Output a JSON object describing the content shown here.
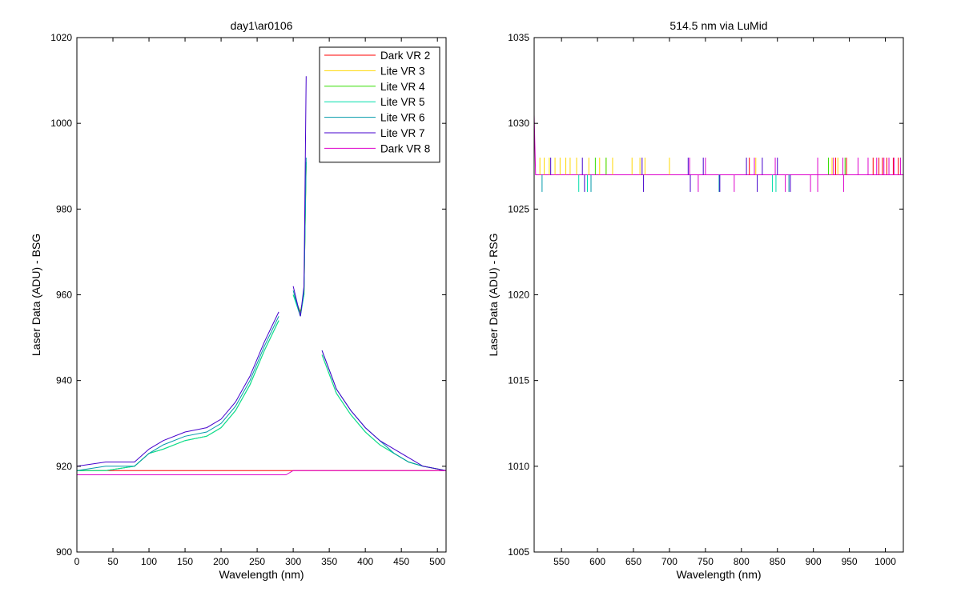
{
  "chart_data": [
    {
      "type": "line",
      "title": "day1\\ar0106",
      "xlabel": "Wavelength (nm)",
      "ylabel": "Laser Data (ADU) - BSG",
      "xlim": [
        0,
        512
      ],
      "ylim": [
        900,
        1020
      ],
      "xticks": [
        0,
        50,
        100,
        150,
        200,
        250,
        300,
        350,
        400,
        450,
        500
      ],
      "yticks": [
        900,
        920,
        940,
        960,
        980,
        1000,
        1020
      ],
      "grid": false,
      "legend_position": "top-right",
      "series": [
        {
          "name": "Dark VR 2",
          "color": "#ff0000",
          "points": [
            [
              0,
              919
            ],
            [
              100,
              919
            ],
            [
              200,
              919
            ],
            [
              300,
              919
            ],
            [
              400,
              919
            ],
            [
              512,
              919
            ]
          ]
        },
        {
          "name": "Lite VR 3",
          "color": "#ffd700",
          "points": [
            [
              0,
              919
            ],
            [
              40,
              919
            ],
            [
              80,
              920
            ],
            [
              100,
              923
            ],
            [
              120,
              924
            ],
            [
              150,
              926
            ],
            [
              180,
              927
            ],
            [
              200,
              929
            ],
            [
              220,
              933
            ],
            [
              240,
              939
            ],
            [
              260,
              947
            ],
            [
              280,
              954
            ],
            [
              null,
              null
            ],
            [
              300,
              960
            ],
            [
              310,
              956
            ],
            [
              315,
              960
            ],
            [
              318,
              990
            ],
            [
              null,
              null
            ],
            [
              340,
              946
            ],
            [
              360,
              937
            ],
            [
              380,
              932
            ],
            [
              400,
              928
            ],
            [
              420,
              925
            ],
            [
              440,
              923
            ],
            [
              460,
              921
            ],
            [
              480,
              920
            ],
            [
              512,
              919
            ]
          ]
        },
        {
          "name": "Lite VR 4",
          "color": "#33dd00",
          "points": [
            [
              0,
              919
            ],
            [
              40,
              919
            ],
            [
              80,
              920
            ],
            [
              100,
              923
            ],
            [
              120,
              924
            ],
            [
              150,
              926
            ],
            [
              180,
              927
            ],
            [
              200,
              929
            ],
            [
              220,
              933
            ],
            [
              240,
              939
            ],
            [
              260,
              947
            ],
            [
              280,
              954
            ],
            [
              null,
              null
            ],
            [
              300,
              960
            ],
            [
              310,
              956
            ],
            [
              315,
              960
            ],
            [
              318,
              991
            ],
            [
              null,
              null
            ],
            [
              340,
              946
            ],
            [
              360,
              937
            ],
            [
              380,
              932
            ],
            [
              400,
              928
            ],
            [
              420,
              925
            ],
            [
              440,
              923
            ],
            [
              460,
              921
            ],
            [
              480,
              920
            ],
            [
              512,
              919
            ]
          ]
        },
        {
          "name": "Lite VR 5",
          "color": "#00ddaa",
          "points": [
            [
              0,
              919
            ],
            [
              40,
              919
            ],
            [
              80,
              920
            ],
            [
              100,
              923
            ],
            [
              120,
              924
            ],
            [
              150,
              926
            ],
            [
              180,
              927
            ],
            [
              200,
              929
            ],
            [
              220,
              933
            ],
            [
              240,
              939
            ],
            [
              260,
              947
            ],
            [
              280,
              954
            ],
            [
              null,
              null
            ],
            [
              300,
              960
            ],
            [
              310,
              955
            ],
            [
              315,
              960
            ],
            [
              318,
              991
            ],
            [
              null,
              null
            ],
            [
              340,
              946
            ],
            [
              360,
              937
            ],
            [
              380,
              932
            ],
            [
              400,
              928
            ],
            [
              420,
              925
            ],
            [
              440,
              923
            ],
            [
              460,
              921
            ],
            [
              480,
              920
            ],
            [
              512,
              919
            ]
          ]
        },
        {
          "name": "Lite VR 6",
          "color": "#0099aa",
          "points": [
            [
              0,
              919
            ],
            [
              40,
              920
            ],
            [
              80,
              920
            ],
            [
              100,
              923
            ],
            [
              120,
              925
            ],
            [
              150,
              927
            ],
            [
              180,
              928
            ],
            [
              200,
              930
            ],
            [
              220,
              934
            ],
            [
              240,
              940
            ],
            [
              260,
              948
            ],
            [
              280,
              955
            ],
            [
              null,
              null
            ],
            [
              300,
              961
            ],
            [
              310,
              955
            ],
            [
              315,
              961
            ],
            [
              318,
              992
            ],
            [
              null,
              null
            ],
            [
              340,
              947
            ],
            [
              360,
              938
            ],
            [
              380,
              933
            ],
            [
              400,
              929
            ],
            [
              420,
              926
            ],
            [
              440,
              923
            ],
            [
              460,
              921
            ],
            [
              480,
              920
            ],
            [
              512,
              919
            ]
          ]
        },
        {
          "name": "Lite VR 7",
          "color": "#4400cc",
          "points": [
            [
              0,
              920
            ],
            [
              40,
              921
            ],
            [
              80,
              921
            ],
            [
              100,
              924
            ],
            [
              120,
              926
            ],
            [
              150,
              928
            ],
            [
              180,
              929
            ],
            [
              200,
              931
            ],
            [
              220,
              935
            ],
            [
              240,
              941
            ],
            [
              260,
              949
            ],
            [
              280,
              956
            ],
            [
              null,
              null
            ],
            [
              300,
              962
            ],
            [
              310,
              955
            ],
            [
              315,
              962
            ],
            [
              318,
              1011
            ],
            [
              null,
              null
            ],
            [
              340,
              947
            ],
            [
              360,
              938
            ],
            [
              380,
              933
            ],
            [
              400,
              929
            ],
            [
              420,
              926
            ],
            [
              440,
              924
            ],
            [
              460,
              922
            ],
            [
              480,
              920
            ],
            [
              512,
              919
            ]
          ]
        },
        {
          "name": "Dark VR 8",
          "color": "#dd00cc",
          "points": [
            [
              0,
              918
            ],
            [
              100,
              918
            ],
            [
              200,
              918
            ],
            [
              290,
              918
            ],
            [
              300,
              919
            ],
            [
              400,
              919
            ],
            [
              512,
              919
            ]
          ]
        }
      ]
    },
    {
      "type": "line",
      "title": "514.5 nm via LuMid",
      "xlabel": "Wavelength (nm)",
      "ylabel": "Laser Data (ADU) - RSG",
      "xlim": [
        512,
        1025
      ],
      "ylim": [
        1005,
        1035
      ],
      "xticks": [
        550,
        600,
        650,
        700,
        750,
        800,
        850,
        900,
        950,
        1000
      ],
      "yticks": [
        1005,
        1010,
        1015,
        1020,
        1025,
        1030,
        1035
      ],
      "grid": false,
      "series": [
        {
          "color": "#dd00cc",
          "points": [
            [
              512,
              1030.5
            ],
            [
              514,
              1027
            ],
            [
              1025,
              1027
            ]
          ]
        },
        {
          "color": "#ffd700",
          "spikes": [
            520,
            526,
            533,
            541,
            548,
            556,
            562,
            571,
            588,
            603,
            612,
            621,
            648,
            659,
            666,
            700,
            820,
            926,
            934
          ],
          "spike_low": 1027,
          "spike_high": 1028
        },
        {
          "color": "#33dd00",
          "spikes": [
            597,
            612,
            921,
            944
          ],
          "spike_low": 1027,
          "spike_high": 1028
        },
        {
          "color": "#00ddaa",
          "spikes": [
            574,
            586,
            843,
            848
          ],
          "spike_low": 1026,
          "spike_high": 1027
        },
        {
          "color": "#0099aa",
          "spikes": [
            523,
            591,
            769,
            866
          ],
          "spike_low": 1026,
          "spike_high": 1027
        },
        {
          "color": "#4400cc",
          "spikes": [
            535,
            579,
            662,
            726,
            747,
            807,
            829,
            850
          ],
          "spike_low": 1027,
          "spike_high": 1028
        },
        {
          "color": "#4400cc",
          "spikes": [
            582,
            664,
            729,
            770,
            822,
            868
          ],
          "spike_low": 1026,
          "spike_high": 1027
        },
        {
          "color": "#ff0000",
          "spikes": [
            811,
            931,
            946,
            983,
            991,
            996,
            1002,
            1011,
            1018
          ],
          "spike_low": 1027,
          "spike_high": 1028
        },
        {
          "color": "#dd00cc",
          "spikes": [
            728,
            750,
            818,
            847,
            906,
            928,
            941,
            962,
            976,
            988,
            998,
            1005,
            1012,
            1021
          ],
          "spike_low": 1027,
          "spike_high": 1028
        },
        {
          "color": "#dd00cc",
          "spikes": [
            740,
            790,
            861,
            896,
            906,
            942
          ],
          "spike_low": 1026,
          "spike_high": 1027
        }
      ]
    }
  ]
}
